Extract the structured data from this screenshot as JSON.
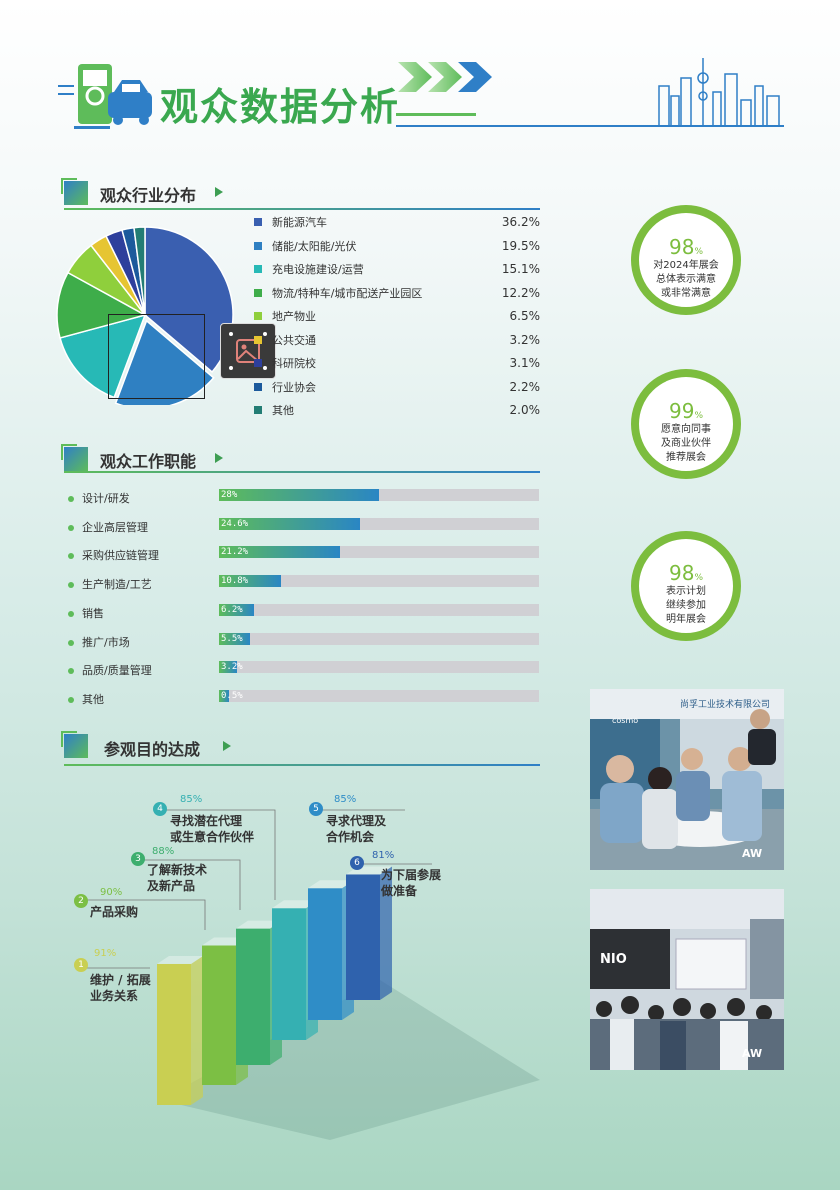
{
  "header": {
    "title": "观众数据分析"
  },
  "industry": {
    "title": "观众行业分布",
    "items": [
      {
        "label": "新能源汽车",
        "value": "36.2%",
        "pct": 36.2,
        "color": "#3a5fb0"
      },
      {
        "label": "储能/太阳能/光伏",
        "value": "19.5%",
        "pct": 19.5,
        "color": "#2f80c2"
      },
      {
        "label": "充电设施建设/运营",
        "value": "15.1%",
        "pct": 15.1,
        "color": "#27b9b6"
      },
      {
        "label": "物流/特种车/城市配送产业园区",
        "value": "12.2%",
        "pct": 12.2,
        "color": "#3ead4a"
      },
      {
        "label": "地产物业",
        "value": "6.5%",
        "pct": 6.5,
        "color": "#8fcf3c"
      },
      {
        "label": "公共交通",
        "value": "3.2%",
        "pct": 3.2,
        "color": "#e6c532"
      },
      {
        "label": "科研院校",
        "value": "3.1%",
        "pct": 3.1,
        "color": "#2e3f9c"
      },
      {
        "label": "行业协会",
        "value": "2.2%",
        "pct": 2.2,
        "color": "#1c5a9c"
      },
      {
        "label": "其他",
        "value": "2.0%",
        "pct": 2.0,
        "color": "#237d74"
      }
    ]
  },
  "satisfaction": [
    {
      "pct": "98",
      "unit": "%",
      "lines": [
        "对2024年展会",
        "总体表示满意",
        "或非常满意"
      ]
    },
    {
      "pct": "99",
      "unit": "%",
      "lines": [
        "愿意向同事",
        "及商业伙伴",
        "推荐展会"
      ]
    },
    {
      "pct": "98",
      "unit": "%",
      "lines": [
        "表示计划",
        "继续参加",
        "明年展会"
      ]
    }
  ],
  "job": {
    "title": "观众工作职能",
    "items": [
      {
        "label": "设计/研发",
        "value": "28%",
        "pct": 28
      },
      {
        "label": "企业高层管理",
        "value": "24.6%",
        "pct": 24.6
      },
      {
        "label": "采购供应链管理",
        "value": "21.2%",
        "pct": 21.2
      },
      {
        "label": "生产制造/工艺",
        "value": "10.8%",
        "pct": 10.8
      },
      {
        "label": "销售",
        "value": "6.2%",
        "pct": 6.2
      },
      {
        "label": "推广/市场",
        "value": "5.5%",
        "pct": 5.5
      },
      {
        "label": "品质/质量管理",
        "value": "3.2%",
        "pct": 3.2
      },
      {
        "label": "其他",
        "value": "0.5%",
        "pct": 0.5
      }
    ]
  },
  "goals": {
    "title": "参观目的达成",
    "items": [
      {
        "num": "1",
        "pct": "91%",
        "pct_value": 91,
        "lines": [
          "维护 / 拓展",
          "业务关系"
        ],
        "color": "#c9cf52"
      },
      {
        "num": "2",
        "pct": "90%",
        "pct_value": 90,
        "lines": [
          "产品采购"
        ],
        "color": "#7cbf44"
      },
      {
        "num": "3",
        "pct": "88%",
        "pct_value": 88,
        "lines": [
          "了解新技术",
          "及新产品"
        ],
        "color": "#3dae6e"
      },
      {
        "num": "4",
        "pct": "85%",
        "pct_value": 85,
        "lines": [
          "寻找潜在代理",
          "或生意合作伙伴"
        ],
        "color": "#35b0b2"
      },
      {
        "num": "5",
        "pct": "85%",
        "pct_value": 85,
        "lines": [
          "寻求代理及",
          "合作机会"
        ],
        "color": "#2f8dc7"
      },
      {
        "num": "6",
        "pct": "81%",
        "pct_value": 81,
        "lines": [
          "为下届参展",
          "做准备"
        ],
        "color": "#2f62ad"
      }
    ]
  },
  "photos": {
    "top_sign": "尚孚工业技术有限公司",
    "top_brand": "cosmo",
    "bottom_brand": "NIO",
    "watermark": "AW"
  }
}
